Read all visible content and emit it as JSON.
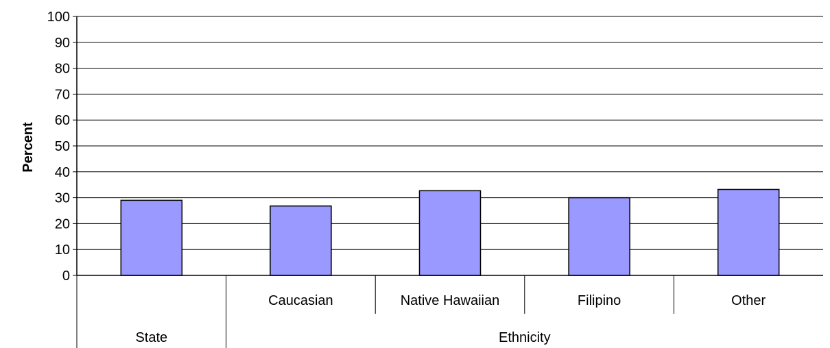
{
  "chart_data": {
    "type": "bar",
    "categories": [
      "",
      "Caucasian",
      "Native Hawaiian",
      "Filipino",
      "Other"
    ],
    "groups": [
      {
        "label": "State",
        "categories": [
          ""
        ]
      },
      {
        "label": "Ethnicity",
        "categories": [
          "Caucasian",
          "Native Hawaiian",
          "Filipino",
          "Other"
        ]
      }
    ],
    "values": [
      29,
      26.8,
      32.7,
      30,
      33.2
    ],
    "ylabel": "Percent",
    "xlabel": "",
    "ylim": [
      0,
      100
    ],
    "yticks": [
      0,
      10,
      20,
      30,
      40,
      50,
      60,
      70,
      80,
      90,
      100
    ],
    "grid": true,
    "bar_color": "#9999ff"
  }
}
